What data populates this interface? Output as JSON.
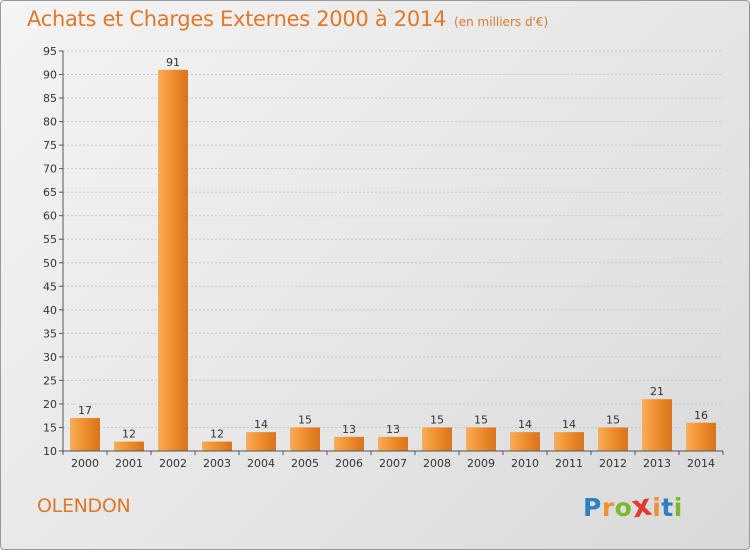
{
  "chart_data": {
    "type": "bar",
    "title": "Achats et Charges Externes 2000 à 2014",
    "subtitle": "(en milliers d'€)",
    "categories": [
      "2000",
      "2001",
      "2002",
      "2003",
      "2004",
      "2005",
      "2006",
      "2007",
      "2008",
      "2009",
      "2010",
      "2011",
      "2012",
      "2013",
      "2014"
    ],
    "values": [
      17,
      12,
      91,
      12,
      14,
      15,
      13,
      13,
      15,
      15,
      14,
      14,
      15,
      21,
      16
    ],
    "ylim": [
      10,
      95
    ],
    "yticks": [
      10,
      15,
      20,
      25,
      30,
      35,
      40,
      45,
      50,
      55,
      60,
      65,
      70,
      75,
      80,
      85,
      90,
      95
    ],
    "grid": true,
    "bar_color": "#f0902e",
    "bar_color_light": "#f7ad5c",
    "bar_color_dark": "#d8731a"
  },
  "place": "OLENDON",
  "logo": {
    "letters": [
      "P",
      "r",
      "o",
      "x",
      "i",
      "t",
      "i"
    ],
    "colors": [
      "#2f7fc1",
      "#f0902e",
      "#7cb82f",
      "#e23a2f",
      "#f0902e",
      "#2f7fc1",
      "#7cb82f"
    ]
  }
}
